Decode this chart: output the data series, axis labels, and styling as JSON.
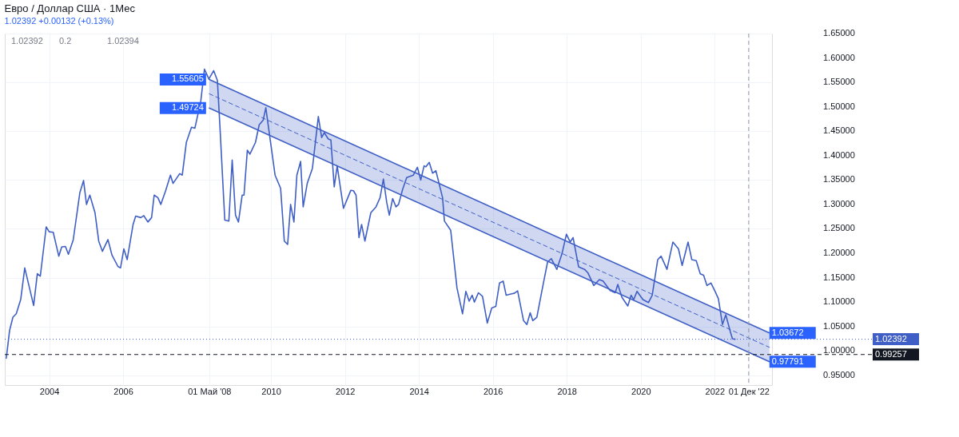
{
  "chart_data": {
    "type": "line",
    "title": "Евро / Доллар США · 1Мес",
    "subtitle": "1.02392 +0.00132 (+0.13%)",
    "annotations": [
      "1.02392",
      "0.2",
      "1.02394"
    ],
    "series": [
      {
        "line_style": "solid",
        "color": "#3f5fc6",
        "x": [
          2002.84,
          2002.93,
          2003.02,
          2003.11,
          2003.23,
          2003.34,
          2003.58,
          2003.68,
          2003.76,
          2003.92,
          2004.0,
          2004.11,
          2004.26,
          2004.34,
          2004.44,
          2004.52,
          2004.65,
          2004.83,
          2004.93,
          2005.01,
          2005.1,
          2005.24,
          2005.34,
          2005.44,
          2005.59,
          2005.7,
          2005.86,
          2005.93,
          2006.02,
          2006.11,
          2006.27,
          2006.34,
          2006.48,
          2006.56,
          2006.67,
          2006.77,
          2006.84,
          2006.94,
          2007.02,
          2007.15,
          2007.28,
          2007.35,
          2007.53,
          2007.6,
          2007.71,
          2007.85,
          2007.94,
          2008.1,
          2008.2,
          2008.32,
          2008.45,
          2008.55,
          2008.62,
          2008.75,
          2008.86,
          2008.95,
          2009.04,
          2009.12,
          2009.22,
          2009.27,
          2009.36,
          2009.43,
          2009.58,
          2009.68,
          2009.79,
          2009.86,
          2009.97,
          2010.11,
          2010.26,
          2010.36,
          2010.45,
          2010.53,
          2010.62,
          2010.7,
          2010.8,
          2010.87,
          2010.98,
          2011.12,
          2011.28,
          2011.37,
          2011.44,
          2011.55,
          2011.62,
          2011.71,
          2011.79,
          2011.96,
          2012.04,
          2012.16,
          2012.23,
          2012.3,
          2012.38,
          2012.45,
          2012.54,
          2012.7,
          2012.84,
          2012.95,
          2013.04,
          2013.13,
          2013.2,
          2013.29,
          2013.38,
          2013.45,
          2013.56,
          2013.67,
          2013.85,
          2013.96,
          2014.05,
          2014.14,
          2014.19,
          2014.28,
          2014.37,
          2014.46,
          2014.64,
          2014.69,
          2014.86,
          2015.03,
          2015.18,
          2015.27,
          2015.36,
          2015.44,
          2015.5,
          2015.61,
          2015.72,
          2015.85,
          2015.97,
          2016.08,
          2016.18,
          2016.28,
          2016.36,
          2016.51,
          2016.58,
          2016.67,
          2016.83,
          2016.92,
          2017.01,
          2017.08,
          2017.19,
          2017.36,
          2017.48,
          2017.58,
          2017.73,
          2017.87,
          2017.99,
          2018.09,
          2018.17,
          2018.32,
          2018.48,
          2018.57,
          2018.73,
          2018.88,
          2018.98,
          2019.17,
          2019.31,
          2019.38,
          2019.49,
          2019.65,
          2019.74,
          2019.81,
          2019.9,
          2020.06,
          2020.21,
          2020.31,
          2020.46,
          2020.55,
          2020.71,
          2020.87,
          2021.02,
          2021.12,
          2021.28,
          2021.38,
          2021.5,
          2021.61,
          2021.7,
          2021.79,
          2021.9,
          2022.01,
          2022.1,
          2022.21,
          2022.3,
          2022.42,
          2022.48,
          2022.55
        ],
        "values": [
          0.985,
          1.042,
          1.069,
          1.076,
          1.105,
          1.17,
          1.093,
          1.158,
          1.153,
          1.254,
          1.244,
          1.243,
          1.194,
          1.213,
          1.214,
          1.198,
          1.227,
          1.324,
          1.349,
          1.3,
          1.319,
          1.283,
          1.225,
          1.204,
          1.228,
          1.196,
          1.173,
          1.17,
          1.209,
          1.187,
          1.259,
          1.276,
          1.273,
          1.277,
          1.264,
          1.273,
          1.319,
          1.314,
          1.3,
          1.328,
          1.36,
          1.343,
          1.363,
          1.36,
          1.427,
          1.458,
          1.456,
          1.511,
          1.577,
          1.557,
          1.574,
          1.554,
          1.458,
          1.268,
          1.266,
          1.391,
          1.278,
          1.264,
          1.319,
          1.319,
          1.411,
          1.403,
          1.427,
          1.463,
          1.473,
          1.498,
          1.437,
          1.36,
          1.333,
          1.225,
          1.218,
          1.3,
          1.264,
          1.36,
          1.388,
          1.295,
          1.343,
          1.374,
          1.48,
          1.437,
          1.447,
          1.434,
          1.432,
          1.336,
          1.379,
          1.292,
          1.307,
          1.329,
          1.328,
          1.319,
          1.232,
          1.259,
          1.225,
          1.283,
          1.295,
          1.314,
          1.352,
          1.304,
          1.278,
          1.312,
          1.295,
          1.3,
          1.331,
          1.355,
          1.36,
          1.376,
          1.35,
          1.379,
          1.377,
          1.386,
          1.364,
          1.369,
          1.314,
          1.266,
          1.247,
          1.129,
          1.076,
          1.122,
          1.102,
          1.114,
          1.1,
          1.119,
          1.112,
          1.057,
          1.088,
          1.091,
          1.139,
          1.143,
          1.114,
          1.117,
          1.118,
          1.123,
          1.062,
          1.054,
          1.078,
          1.062,
          1.069,
          1.136,
          1.182,
          1.189,
          1.167,
          1.199,
          1.239,
          1.223,
          1.232,
          1.172,
          1.167,
          1.16,
          1.134,
          1.146,
          1.143,
          1.124,
          1.119,
          1.136,
          1.11,
          1.092,
          1.114,
          1.105,
          1.122,
          1.105,
          1.099,
          1.114,
          1.187,
          1.194,
          1.167,
          1.223,
          1.209,
          1.175,
          1.223,
          1.187,
          1.185,
          1.158,
          1.155,
          1.134,
          1.139,
          1.122,
          1.107,
          1.054,
          1.074,
          1.04,
          1.025,
          1.02392
        ]
      },
      {
        "color": "#3f5fc6",
        "line_style": "solid",
        "x": [
          2008.33,
          2023.48
        ],
        "values": [
          1.55605,
          1.03672
        ],
        "value_labels": [
          "1.55605",
          "1.03672"
        ]
      },
      {
        "color": "#3f5fc6",
        "line_style": "solid",
        "x": [
          2008.33,
          2023.48
        ],
        "values": [
          1.49724,
          0.97791
        ],
        "value_labels": [
          "1.49724",
          "0.97791"
        ]
      },
      {
        "color": "#3f5fc6",
        "line_style": "dashed",
        "x": [
          2008.33,
          2023.48
        ],
        "values": [
          1.5266,
          1.0073
        ],
        "lower": [
          1.49724,
          0.97791
        ],
        "upper": [
          1.55605,
          1.03672
        ]
      }
    ],
    "xlim": [
      2002.8,
      2023.55
    ],
    "ylim": [
      0.93,
      1.65
    ],
    "xticks": [
      2004,
      2006,
      {
        "value": 2008.33,
        "label": "01 Май '08"
      },
      2010,
      2012,
      2014,
      2016,
      2018,
      2020,
      2022,
      {
        "value": 2022.92,
        "label": "01 Дек '22"
      }
    ],
    "yticks": [
      {
        "value": 0.95,
        "label": "0.95000"
      },
      {
        "value": 1.0,
        "label": "1.00000"
      },
      {
        "value": 1.05,
        "label": "1.05000"
      },
      {
        "value": 1.1,
        "label": "1.10000"
      },
      {
        "value": 1.15,
        "label": "1.15000"
      },
      {
        "value": 1.2,
        "label": "1.20000"
      },
      {
        "value": 1.25,
        "label": "1.25000"
      },
      {
        "value": 1.3,
        "label": "1.30000"
      },
      {
        "value": 1.35,
        "label": "1.35000"
      },
      {
        "value": 1.4,
        "label": "1.40000"
      },
      {
        "value": 1.45,
        "label": "1.45000"
      },
      {
        "value": 1.5,
        "label": "1.50000"
      },
      {
        "value": 1.55,
        "label": "1.55000"
      },
      {
        "value": 1.6,
        "label": "1.60000"
      },
      {
        "value": 1.65,
        "label": "1.65000"
      }
    ],
    "ref_lines": [
      {
        "axis": "y",
        "value": 1.02392,
        "label": "1.02392",
        "line_style": "dotted",
        "color": "#3f5fc6"
      },
      {
        "axis": "y",
        "value": 0.99257,
        "label": "0.99257",
        "line_style": "dashed",
        "color": "#131722"
      },
      {
        "axis": "x",
        "value": 2022.92,
        "line_style": "dashed",
        "color": "#9598a1"
      }
    ],
    "grid": true
  }
}
